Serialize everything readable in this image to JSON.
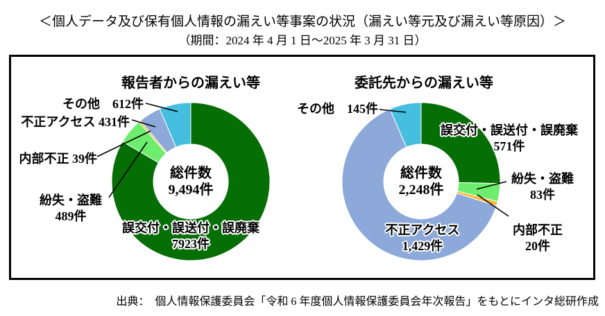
{
  "header": {
    "title": "＜個人データ及び保有個人情報の漏えい等事案の状況（漏えい等元及び漏えい等原因）＞",
    "subtitle": "（期間：2024 年 4 月 1 日～2025 年 3 月 31 日）"
  },
  "footer": {
    "source": "出典：　個人情報保護委員会「令和 6 年度個人情報保護委員会年次報告」をもとにインタ総研作成"
  },
  "chart_data": [
    {
      "type": "pie",
      "variant": "donut",
      "title": "報告者からの漏えい等",
      "center_label": "総件数",
      "center_value": "9,494件",
      "total": 9494,
      "unit": "件",
      "start_angle_deg": 0,
      "direction": "clockwise",
      "legend": "none (callout labels)",
      "segments": [
        {
          "label": "誤交付・誤送付・誤廃棄",
          "value": 7923,
          "display": "7923件",
          "color": "#056e05"
        },
        {
          "label": "紛失・盗難",
          "value": 489,
          "display": "489件",
          "color": "#6ded6d"
        },
        {
          "label": "内部不正",
          "value": 39,
          "display": "39件",
          "color": "#ffb32e"
        },
        {
          "label": "不正アクセス",
          "value": 431,
          "display": "431件",
          "color": "#8ca9da"
        },
        {
          "label": "その他",
          "value": 612,
          "display": "612件",
          "color": "#45bee0"
        }
      ]
    },
    {
      "type": "pie",
      "variant": "donut",
      "title": "委託先からの漏えい等",
      "center_label": "総件数",
      "center_value": "2,248件",
      "total": 2248,
      "unit": "件",
      "start_angle_deg": 0,
      "direction": "clockwise",
      "legend": "none (callout labels)",
      "segments": [
        {
          "label": "誤交付・誤送付・誤廃棄",
          "value": 571,
          "display": "571件",
          "color": "#056e05"
        },
        {
          "label": "紛失・盗難",
          "value": 83,
          "display": "83件",
          "color": "#6ded6d"
        },
        {
          "label": "内部不正",
          "value": 20,
          "display": "20件",
          "color": "#ffb32e"
        },
        {
          "label": "不正アクセス",
          "value": 1429,
          "display": "1,429件",
          "color": "#8ca9da"
        },
        {
          "label": "その他",
          "value": 145,
          "display": "145件",
          "color": "#45bee0"
        }
      ]
    }
  ]
}
